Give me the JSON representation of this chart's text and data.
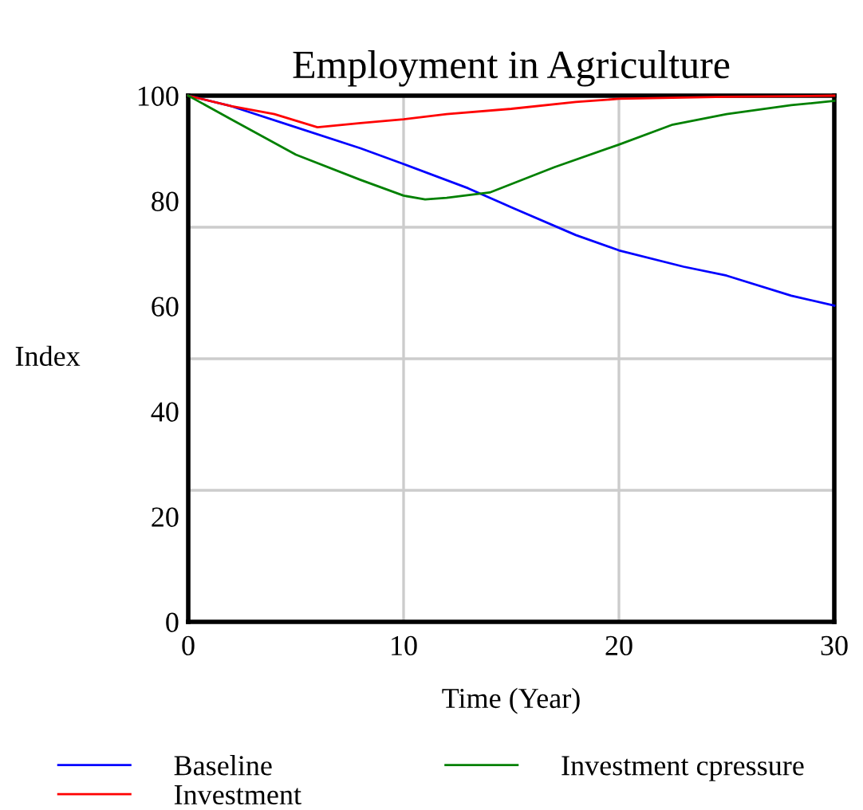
{
  "chart_data": {
    "type": "line",
    "title": "Employment in Agriculture",
    "xlabel": "Time (Year)",
    "ylabel": "Index",
    "xlim": [
      0,
      30
    ],
    "xticks": [
      0,
      10,
      20,
      30
    ],
    "ylim": [
      0,
      100
    ],
    "yticks": [
      0,
      20,
      40,
      60,
      80,
      100,
      {
        "value": 25,
        "label": null
      },
      {
        "value": 50,
        "label": null
      },
      {
        "value": 75,
        "label": null
      }
    ],
    "grid": true,
    "legend": "bottom",
    "line_style": "solid",
    "marker": "none",
    "series": [
      {
        "name": "Baseline",
        "color": "#0000ff",
        "x": [
          0,
          2,
          5,
          8,
          10,
          13,
          15,
          18,
          20,
          23,
          25,
          28,
          30
        ],
        "values": [
          100,
          98,
          94,
          90,
          87,
          82.4,
          78.8,
          73.5,
          70.6,
          67.5,
          65.8,
          62,
          60.1
        ]
      },
      {
        "name": "Investment",
        "color": "#ff0000",
        "x": [
          0,
          2,
          4,
          6,
          8,
          10,
          12,
          15,
          18,
          20,
          25,
          30
        ],
        "values": [
          100,
          98,
          96.5,
          94,
          94.8,
          95.5,
          96.5,
          97.5,
          98.8,
          99.4,
          99.8,
          100
        ]
      },
      {
        "name": "Investment cpressure",
        "color": "#008000",
        "x": [
          0,
          2,
          5,
          8,
          10,
          11,
          12,
          14,
          17,
          20,
          22.5,
          25,
          28,
          30
        ],
        "values": [
          100,
          95.5,
          88.8,
          84,
          81,
          80.3,
          80.6,
          81.6,
          86.4,
          90.7,
          94.5,
          96.5,
          98.2,
          99
        ]
      }
    ]
  }
}
